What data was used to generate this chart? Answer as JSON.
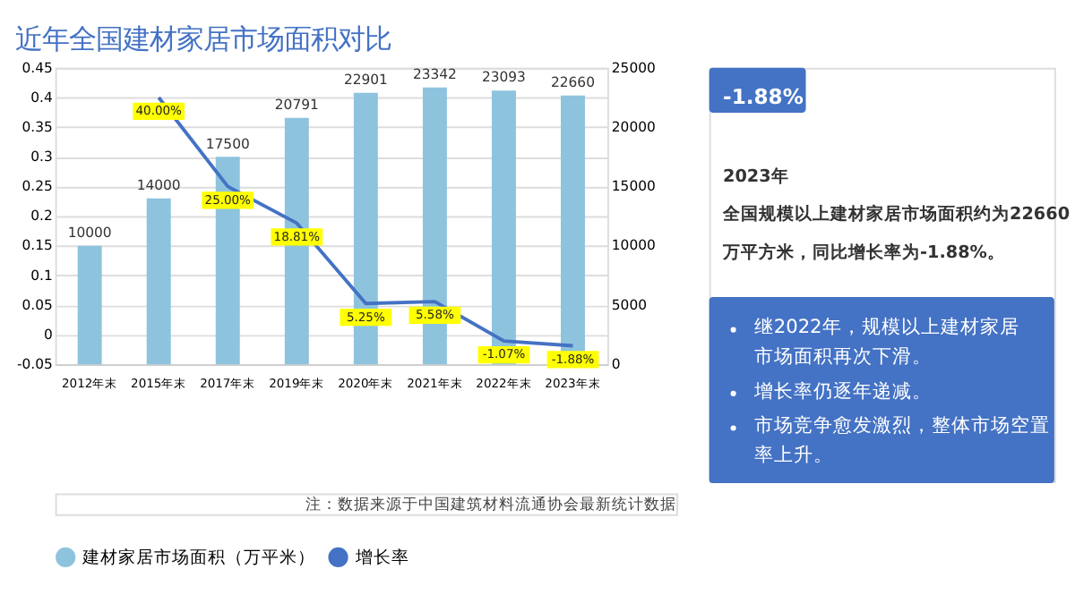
{
  "chart_data": {
    "type": "bar",
    "title": "近年全国建材家居市场面积对比",
    "categories": [
      "2012年末",
      "2015年末",
      "2017年末",
      "2019年末",
      "2020年末",
      "2021年末",
      "2022年末",
      "2023年末"
    ],
    "series": [
      {
        "name": "建材家居市场面积（万平米）",
        "axis": "y2",
        "color": "#8ec3de",
        "values": [
          10000,
          14000,
          17500,
          20791,
          22901,
          23342,
          23093,
          22660
        ],
        "value_labels": [
          "10000",
          "14000",
          "17500",
          "20791",
          "22901",
          "23342",
          "23093",
          "22660"
        ]
      },
      {
        "name": "增长率",
        "type": "line",
        "color": "#4472c4",
        "values": [
          null,
          0.4,
          0.25,
          0.1881,
          0.0525,
          0.0558,
          -0.0107,
          -0.0188
        ],
        "value_labels": [
          null,
          "40.00%",
          "25.00%",
          "18.81%",
          "5.25%",
          "5.58%",
          "-1.07%",
          "-1.88%"
        ]
      }
    ],
    "ylim": [
      -0.05,
      0.45
    ],
    "yticks": [
      -0.05,
      0,
      0.05,
      0.1,
      0.15,
      0.2,
      0.25,
      0.3,
      0.35,
      0.4,
      0.45
    ],
    "y2lim": [
      0,
      25000
    ],
    "y2ticks": [
      0,
      5000,
      10000,
      15000,
      20000,
      25000
    ],
    "grid": "y",
    "legend": "bottom",
    "annotations": [
      "注：数据来源于中国建筑材料流通协会最新统计数据",
      "-1.88%",
      "2023年",
      "全国规模以上建材家居市场面积约为22660",
      "万平方米，同比增长率为-1.88%。",
      "继2022年，规模以上建材家居市场面积再次下滑。",
      "增长率仍逐年递减。",
      "市场竞争愈发激烈，整体市场空置率上升。"
    ]
  }
}
